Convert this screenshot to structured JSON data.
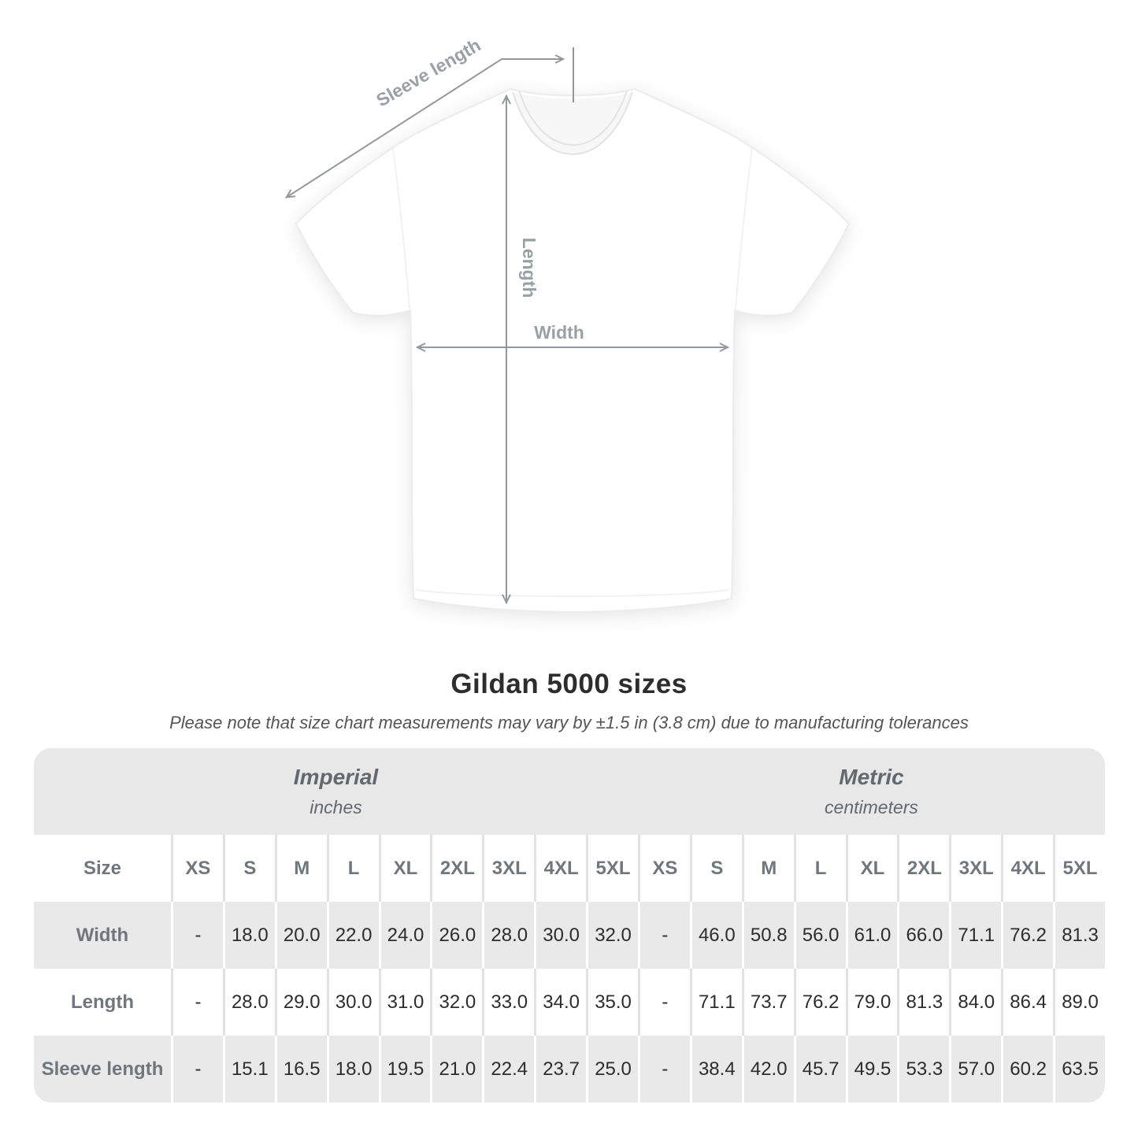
{
  "figure": {
    "sleeve_label": "Sleeve length",
    "length_label": "Length",
    "width_label": "Width"
  },
  "title": "Gildan 5000 sizes",
  "subtitle": "Please note that size chart measurements may vary by ±1.5 in (3.8 cm) due to manufacturing tolerances",
  "table": {
    "size_header": "Size",
    "groups": [
      {
        "label": "Imperial",
        "unit": "inches"
      },
      {
        "label": "Metric",
        "unit": "centimeters"
      }
    ]
  },
  "colors": {
    "band_gray": "#e8e8e8",
    "row_gray": "#e9e9e9",
    "separator_on_white": "#e2e2e2",
    "annotation_gray": "#94989c",
    "figure_label_gray": "#9ba0a5",
    "header_text": "#70767b",
    "value_text": "#2d2d2d"
  },
  "chart_data": {
    "type": "table",
    "title": "Gildan 5000 sizes",
    "note": "Please note that size chart measurements may vary by ±1.5 in (3.8 cm) due to manufacturing tolerances",
    "columns": [
      "XS",
      "S",
      "M",
      "L",
      "XL",
      "2XL",
      "3XL",
      "4XL",
      "5XL"
    ],
    "imperial_unit": "inches",
    "metric_unit": "centimeters",
    "rows": [
      {
        "measurement": "Width",
        "imperial": [
          "-",
          "18.0",
          "20.0",
          "22.0",
          "24.0",
          "26.0",
          "28.0",
          "30.0",
          "32.0"
        ],
        "metric": [
          "-",
          "46.0",
          "50.8",
          "56.0",
          "61.0",
          "66.0",
          "71.1",
          "76.2",
          "81.3"
        ]
      },
      {
        "measurement": "Length",
        "imperial": [
          "-",
          "28.0",
          "29.0",
          "30.0",
          "31.0",
          "32.0",
          "33.0",
          "34.0",
          "35.0"
        ],
        "metric": [
          "-",
          "71.1",
          "73.7",
          "76.2",
          "79.0",
          "81.3",
          "84.0",
          "86.4",
          "89.0"
        ]
      },
      {
        "measurement": "Sleeve length",
        "imperial": [
          "-",
          "15.1",
          "16.5",
          "18.0",
          "19.5",
          "21.0",
          "22.4",
          "23.7",
          "25.0"
        ],
        "metric": [
          "-",
          "38.4",
          "42.0",
          "45.7",
          "49.5",
          "53.3",
          "57.0",
          "60.2",
          "63.5"
        ]
      }
    ]
  }
}
